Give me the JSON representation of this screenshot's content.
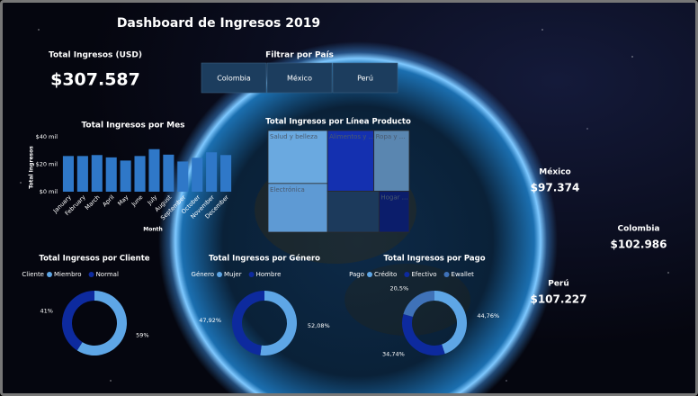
{
  "title": "Dashboard de Ingresos 2019",
  "kpi": {
    "label": "Total Ingresos (USD)",
    "value": "$307.587"
  },
  "filter": {
    "title": "Filtrar por País",
    "buttons": [
      "Colombia",
      "México",
      "Perú"
    ]
  },
  "countries": [
    {
      "name": "México",
      "value": "$97.374"
    },
    {
      "name": "Colombia",
      "value": "$102.986"
    },
    {
      "name": "Perú",
      "value": "$107.227"
    }
  ],
  "chart_data": [
    {
      "type": "bar",
      "title": "Total Ingresos por Mes",
      "x_label": "Month",
      "y_label": "Total Ingresos",
      "categories": [
        "January",
        "February",
        "March",
        "April",
        "May",
        "June",
        "July",
        "August",
        "September",
        "October",
        "November",
        "December"
      ],
      "values": [
        26,
        26,
        26.7,
        25,
        22.7,
        26,
        31,
        27,
        22,
        24.7,
        28.7,
        26.7
      ],
      "color": "#2f78c8",
      "ylim": [
        0,
        40
      ],
      "yticks": [
        {
          "value": 0,
          "label": "$0 mil"
        },
        {
          "value": 20,
          "label": "$20 mil"
        },
        {
          "value": 40,
          "label": "$40 mil"
        }
      ],
      "grid": false
    },
    {
      "type": "treemap",
      "title": "Total Ingresos por Línea Producto",
      "categories": [
        "Salud y belleza",
        "Electrónica",
        "Alimentos y ...",
        "Ropa y ...",
        null,
        "Hogar ..."
      ],
      "values": [
        67.5,
        62.1,
        60.2,
        46.0,
        45.3,
        26.6
      ],
      "colors": [
        "#6aa9e0",
        "#5e9ad4",
        "#1430b0",
        "#5a86b0",
        "#1c3a5c",
        "#0b1d6b"
      ]
    },
    {
      "type": "pie",
      "donut": true,
      "title": "Total Ingresos por Cliente",
      "legend_title": "Cliente",
      "categories": [
        "Miembro",
        "Normal"
      ],
      "values": [
        59,
        41
      ],
      "value_labels": [
        "59%",
        "41%"
      ],
      "colors": [
        "#5ea6e6",
        "#0d2a9e"
      ]
    },
    {
      "type": "pie",
      "donut": true,
      "title": "Total Ingresos por Género",
      "legend_title": "Género",
      "categories": [
        "Mujer",
        "Hombre"
      ],
      "values": [
        52.08,
        47.92
      ],
      "value_labels": [
        "52,08%",
        "47,92%"
      ],
      "colors": [
        "#5ea6e6",
        "#0d2a9e"
      ]
    },
    {
      "type": "pie",
      "donut": true,
      "title": "Total Ingresos por Pago",
      "legend_title": "Pago",
      "categories": [
        "Crédito",
        "Efectivo",
        "Ewallet"
      ],
      "values": [
        44.76,
        34.74,
        20.5
      ],
      "value_labels": [
        "44,76%",
        "34,74%",
        "20,5%"
      ],
      "colors": [
        "#5ea6e6",
        "#0d2a9e",
        "#3f72b8"
      ]
    }
  ]
}
